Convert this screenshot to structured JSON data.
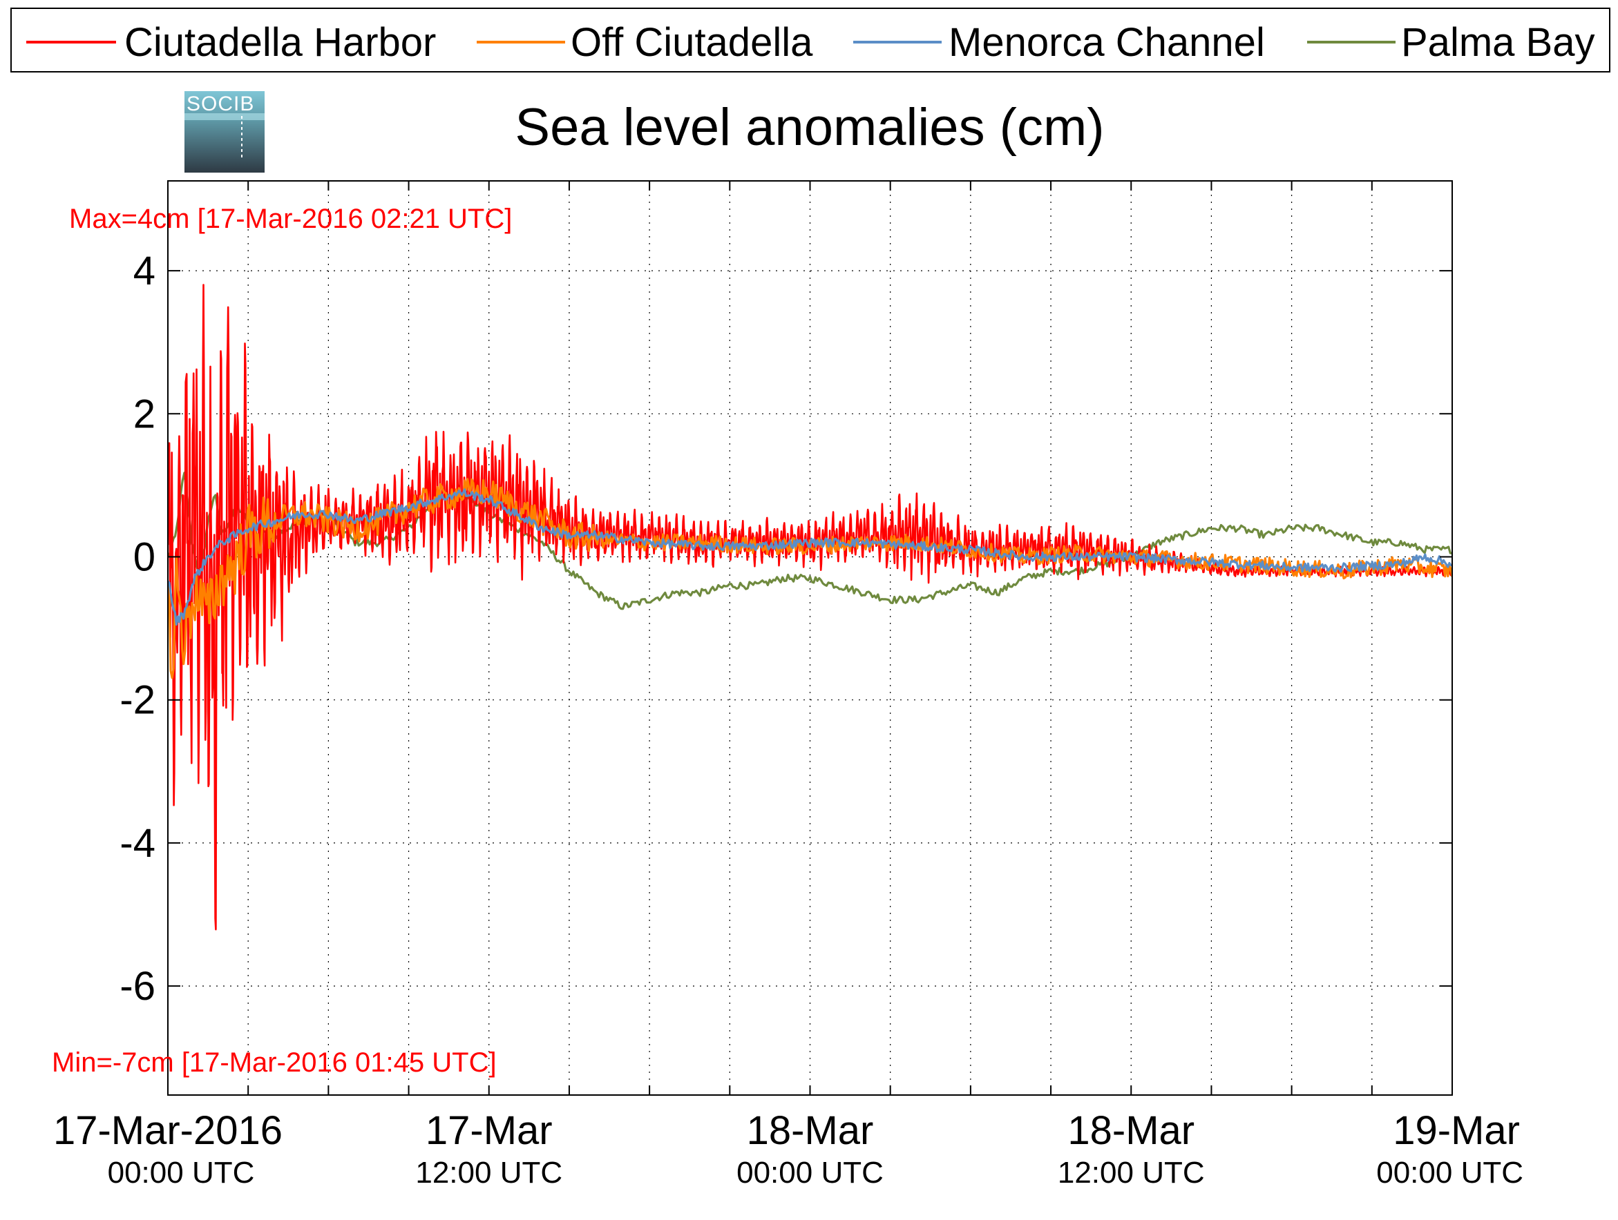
{
  "chart_data": {
    "type": "line",
    "title": "Sea level anomalies (cm)",
    "ylabel": "",
    "xlabel": "",
    "ylim": [
      -7.5,
      5.3
    ],
    "yticks": [
      4,
      2,
      0,
      -2,
      -4,
      -6
    ],
    "xlim": [
      0,
      48
    ],
    "grid": true,
    "legend_position": "top",
    "x_ticks": [
      {
        "hour": 0,
        "label": "17-Mar-2016",
        "sublabel": "00:00 UTC"
      },
      {
        "hour": 12,
        "label": "17-Mar",
        "sublabel": "12:00 UTC"
      },
      {
        "hour": 24,
        "label": "18-Mar",
        "sublabel": "00:00 UTC"
      },
      {
        "hour": 36,
        "label": "18-Mar",
        "sublabel": "12:00 UTC"
      },
      {
        "hour": 48,
        "label": "19-Mar",
        "sublabel": "00:00 UTC"
      }
    ],
    "annotations": {
      "max": {
        "text": "Max=4cm [17-Mar-2016 02:21 UTC]",
        "color": "#ff0000"
      },
      "min": {
        "text": "Min=-7cm [17-Mar-2016 01:45 UTC]",
        "color": "#ff0000"
      }
    },
    "series": [
      {
        "name": "Ciutadella Harbor",
        "color": "#ff0000",
        "x": [
          0,
          0.3,
          0.6,
          1.0,
          1.5,
          1.75,
          2.0,
          2.35,
          2.7,
          3.2,
          4.0,
          5.0,
          6.0,
          7.0,
          8.0,
          9.0,
          10.0,
          11.0,
          12.0,
          13.0,
          14.0,
          15.0,
          16.0,
          18.0,
          20.0,
          22.0,
          24.0,
          26.0,
          28.0,
          30.0,
          32.0,
          34.0,
          36.0,
          38.0,
          40.0,
          42.0,
          44.0,
          46.0,
          48.0
        ],
        "y": [
          0.2,
          -0.8,
          0.3,
          0.4,
          0.0,
          -0.5,
          0.3,
          0.5,
          0.4,
          0.3,
          0.2,
          0.4,
          0.5,
          0.5,
          0.5,
          0.6,
          0.9,
          0.8,
          0.9,
          0.7,
          0.6,
          0.4,
          0.3,
          0.3,
          0.2,
          0.2,
          0.2,
          0.3,
          0.3,
          0.1,
          0.1,
          0.1,
          0.0,
          -0.1,
          -0.2,
          -0.2,
          -0.2,
          -0.2,
          -0.2
        ],
        "envelope": [
          3.8,
          4.2,
          4.6,
          4.8,
          5.0,
          5.2,
          5.3,
          5.0,
          4.3,
          3.5,
          2.2,
          1.0,
          0.7,
          0.6,
          0.8,
          0.9,
          1.5,
          1.3,
          1.2,
          1.5,
          1.0,
          0.7,
          0.55,
          0.5,
          0.45,
          0.45,
          0.5,
          0.6,
          0.9,
          0.55,
          0.45,
          0.55,
          0.35,
          0.2,
          0.12,
          0.1,
          0.1,
          0.1,
          0.1
        ]
      },
      {
        "name": "Off Ciutadella",
        "color": "#ff8000",
        "x": [
          0,
          0.2,
          0.3,
          0.6,
          1.0,
          1.5,
          2.0,
          2.5,
          3.0,
          3.5,
          4.0,
          5.0,
          6.0,
          7.0,
          8.0,
          9.0,
          10.0,
          11.0,
          12.0,
          13.0,
          14.0,
          15.0,
          16.0,
          18.0,
          20.0,
          22.0,
          24.0,
          26.0,
          28.0,
          30.0,
          32.0,
          34.0,
          36.0,
          38.0,
          40.0,
          42.0,
          44.0,
          46.0,
          48.0
        ],
        "y": [
          -0.5,
          -1.8,
          -0.2,
          -1.2,
          -0.5,
          -0.8,
          -0.3,
          -0.1,
          0.3,
          0.4,
          0.5,
          0.6,
          0.5,
          0.4,
          0.5,
          0.7,
          0.8,
          0.9,
          0.9,
          0.7,
          0.5,
          0.3,
          0.25,
          0.2,
          0.2,
          0.15,
          0.15,
          0.2,
          0.2,
          0.1,
          0.0,
          0.05,
          0.0,
          -0.05,
          -0.1,
          -0.15,
          -0.2,
          -0.1,
          -0.2
        ]
      },
      {
        "name": "Menorca Channel",
        "color": "#5b8ec7",
        "x": [
          0,
          0.3,
          0.6,
          1.0,
          1.5,
          2.0,
          3.0,
          4.0,
          5.0,
          6.0,
          7.0,
          8.0,
          9.0,
          10.0,
          11.0,
          12.0,
          13.0,
          14.0,
          15.0,
          16.0,
          18.0,
          20.0,
          22.0,
          24.0,
          26.0,
          28.0,
          30.0,
          32.0,
          34.0,
          36.0,
          38.0,
          40.0,
          42.0,
          44.0,
          46.0,
          47.0,
          48.0
        ],
        "y": [
          -0.3,
          -0.9,
          -0.8,
          -0.3,
          0.0,
          0.2,
          0.4,
          0.5,
          0.6,
          0.6,
          0.5,
          0.6,
          0.7,
          0.8,
          0.9,
          0.8,
          0.6,
          0.4,
          0.3,
          0.3,
          0.2,
          0.15,
          0.15,
          0.2,
          0.2,
          0.15,
          0.1,
          0.0,
          0.0,
          0.0,
          -0.05,
          -0.1,
          -0.15,
          -0.15,
          -0.1,
          0.0,
          -0.1
        ]
      },
      {
        "name": "Palma Bay",
        "color": "#6f8a3e",
        "x": [
          0,
          0.3,
          0.6,
          0.9,
          1.2,
          1.5,
          1.75,
          2.0,
          2.3,
          2.6,
          3.0,
          4.0,
          5.0,
          6.0,
          7.0,
          8.0,
          9.0,
          10.0,
          11.0,
          12.0,
          13.0,
          14.0,
          15.0,
          16.0,
          17.0,
          18.0,
          19.0,
          20.0,
          21.0,
          22.0,
          23.0,
          24.0,
          25.0,
          26.0,
          27.0,
          28.0,
          29.0,
          30.0,
          31.0,
          32.0,
          33.0,
          34.0,
          35.0,
          36.0,
          37.0,
          38.0,
          39.0,
          40.0,
          41.0,
          42.0,
          43.0,
          44.0,
          45.0,
          46.0,
          47.0,
          48.0
        ],
        "y": [
          0.0,
          0.3,
          1.2,
          0.2,
          -0.3,
          0.5,
          0.9,
          0.3,
          0.5,
          0.7,
          0.5,
          0.3,
          0.5,
          0.6,
          0.2,
          0.2,
          0.4,
          0.8,
          0.9,
          0.6,
          0.4,
          0.2,
          -0.2,
          -0.5,
          -0.7,
          -0.6,
          -0.5,
          -0.5,
          -0.4,
          -0.4,
          -0.3,
          -0.3,
          -0.4,
          -0.5,
          -0.6,
          -0.6,
          -0.5,
          -0.4,
          -0.5,
          -0.3,
          -0.2,
          -0.2,
          -0.1,
          0.0,
          0.2,
          0.3,
          0.4,
          0.4,
          0.3,
          0.4,
          0.4,
          0.3,
          0.2,
          0.2,
          0.1,
          0.1
        ]
      }
    ]
  }
}
